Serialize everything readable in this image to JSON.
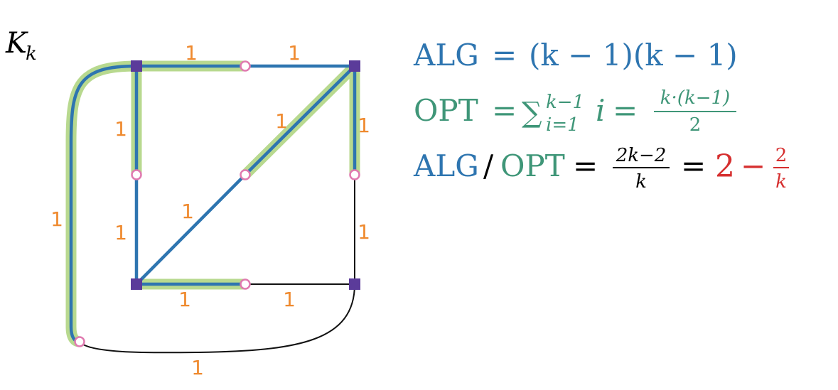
{
  "graph_label": "K",
  "graph_label_sub": "k",
  "edge_labels": [
    "1",
    "1",
    "1",
    "1",
    "1",
    "1",
    "1",
    "1",
    "1",
    "1",
    "1",
    "1"
  ],
  "colors": {
    "alg": "#2e75b0",
    "opt": "#3f9678",
    "highlight": "#b8d98f",
    "edge_label": "#ef8a2f",
    "terminal": "#5b3b9a",
    "steiner": "#e07ab0",
    "ratio": "#d62f2f",
    "plain_edge": "#111111"
  },
  "formulas": {
    "alg": {
      "lhs": "ALG",
      "eq": "=",
      "rhs": "(k − 1)(k − 1)"
    },
    "opt": {
      "lhs": "OPT",
      "eq": "=",
      "sum": "∑",
      "sum_upper": "k−1",
      "sum_lower": "i=1",
      "term": "i",
      "eq2": "=",
      "num": "k·(k−1)",
      "den": "2"
    },
    "ratio": {
      "alg": "ALG",
      "slash": "/",
      "opt": "OPT",
      "eq": "=",
      "num": "2k−2",
      "den": "k",
      "eq2": "=",
      "two": "2",
      "minus": "−",
      "frac_num": "2",
      "frac_den": "k"
    }
  }
}
